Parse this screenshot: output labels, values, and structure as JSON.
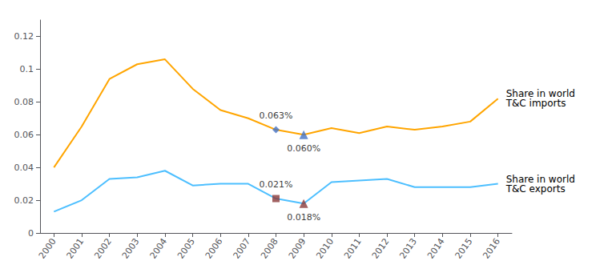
{
  "chart_data": {
    "type": "line",
    "x": [
      2000,
      2001,
      2002,
      2003,
      2004,
      2005,
      2006,
      2007,
      2008,
      2009,
      2010,
      2011,
      2012,
      2013,
      2014,
      2015,
      2016
    ],
    "series": [
      {
        "name": "Share in world\nT&C imports",
        "color": "#FFA500",
        "values": [
          0.04,
          0.065,
          0.094,
          0.103,
          0.106,
          0.088,
          0.075,
          0.07,
          0.063,
          0.06,
          0.064,
          0.061,
          0.065,
          0.063,
          0.065,
          0.068,
          0.082
        ]
      },
      {
        "name": "Share in world\nT&C exports",
        "color": "#4DBFFF",
        "values": [
          0.013,
          0.02,
          0.033,
          0.034,
          0.038,
          0.029,
          0.03,
          0.03,
          0.021,
          0.018,
          0.031,
          0.032,
          0.033,
          0.028,
          0.028,
          0.028,
          0.03
        ]
      }
    ],
    "annotations": [
      {
        "x": 2008,
        "y": 0.063,
        "text": "0.063%",
        "marker": "diamond",
        "color": "#4472C4"
      },
      {
        "x": 2009,
        "y": 0.06,
        "text": "0.060%",
        "marker": "triangle",
        "color": "#4472C4"
      },
      {
        "x": 2008,
        "y": 0.021,
        "text": "0.021%",
        "marker": "square",
        "color": "#8B3A3A"
      },
      {
        "x": 2009,
        "y": 0.018,
        "text": "0.018%",
        "marker": "triangle",
        "color": "#8B3A3A"
      }
    ],
    "xlim": [
      1999.5,
      2016.5
    ],
    "xticks": [
      2000,
      2001,
      2002,
      2003,
      2004,
      2005,
      2006,
      2007,
      2008,
      2009,
      2010,
      2011,
      2012,
      2013,
      2014,
      2015,
      2016
    ],
    "ylim": [
      0,
      0.13
    ],
    "yticks": [
      0,
      0.02,
      0.04,
      0.06,
      0.08,
      0.1,
      0.12
    ],
    "grid": false
  }
}
